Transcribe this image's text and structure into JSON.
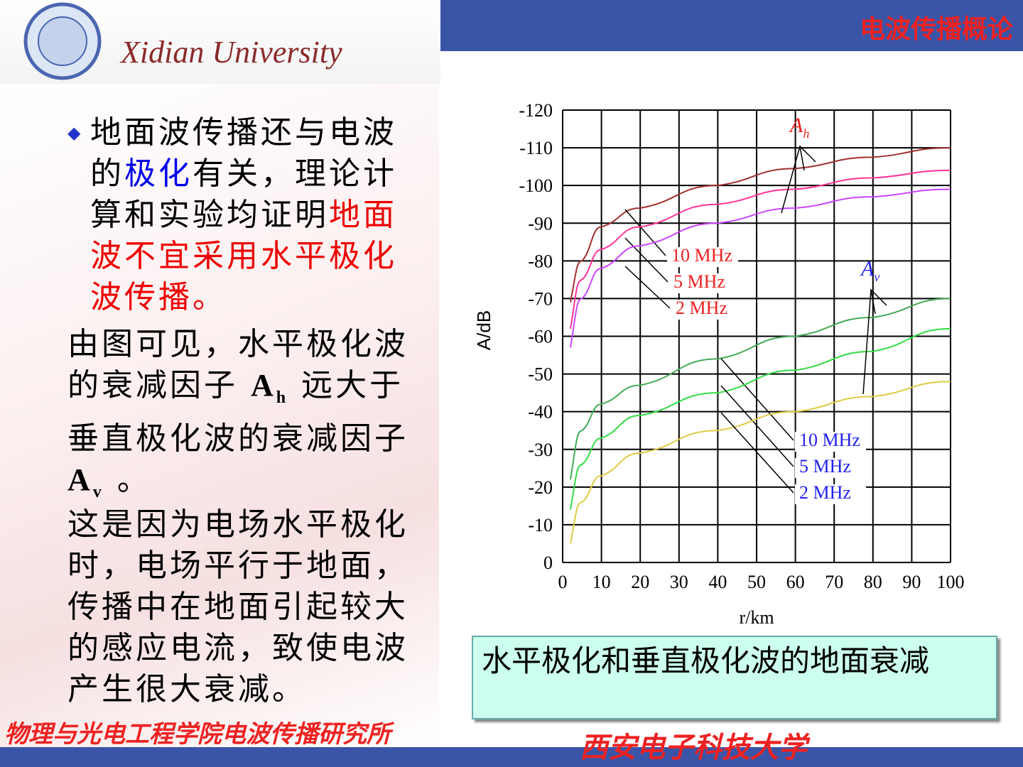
{
  "header": {
    "course": "电波传播概论",
    "university_en": "Xidian University"
  },
  "bullet": [
    {
      "text": "地面波传播还与电波的",
      "color": "#000000"
    },
    {
      "text": "极化",
      "color": "#0000ee"
    },
    {
      "text": "有关，理论计算和实验均证明",
      "color": "#000000"
    },
    {
      "text": "地面波不宜采用水平极化波传播。",
      "color": "#ee0000"
    }
  ],
  "paragraph2": {
    "before": "由图可见，水平极化波的衰减因子 ",
    "a1": "A",
    "sub1": "h",
    "middle": " 远大于垂直极化波的衰减因子",
    "a2": "A",
    "sub2": "v",
    "after": " 。"
  },
  "paragraph3": "这是因为电场水平极化时，电场平行于地面，传播中在地面引起较大的感应电流，致使电波产生很大衰减。",
  "caption": "水平极化和垂直极化波的地面衰减",
  "footer": {
    "institute": "物理与光电工程学院电波传播研究所",
    "university": "西安电子科技大学"
  },
  "chart_data": {
    "type": "line",
    "xlabel": "r/km",
    "ylabel": "A/dB",
    "x": [
      2,
      5,
      10,
      20,
      40,
      60,
      80,
      100
    ],
    "xlim": [
      0,
      100
    ],
    "xticks": [
      0,
      10,
      20,
      30,
      40,
      50,
      60,
      70,
      80,
      90,
      100
    ],
    "ylim": [
      0,
      -120
    ],
    "yticks": [
      0,
      -10,
      -20,
      -30,
      -40,
      -50,
      -60,
      -70,
      -80,
      -90,
      -100,
      -110,
      -120
    ],
    "grid": true,
    "annotations": [
      {
        "text": "A",
        "sub": "h",
        "color": "#ee2222"
      },
      {
        "text": "A",
        "sub": "v",
        "color": "#2222ee"
      }
    ],
    "series": [
      {
        "name": "10 MHz",
        "color": "#a03030",
        "label_color": "#ee2222",
        "values": [
          -69,
          -80,
          -89,
          -94,
          -100,
          -104.5,
          -107.5,
          -110
        ]
      },
      {
        "name": "5 MHz",
        "color": "#ff3399",
        "label_color": "#ee2222",
        "values": [
          -62,
          -75,
          -83,
          -89,
          -95,
          -99,
          -102,
          -104
        ]
      },
      {
        "name": "2 MHz",
        "color": "#cc44ff",
        "label_color": "#ee2222",
        "values": [
          -57,
          -70,
          -78,
          -84,
          -90,
          -94,
          -97,
          -99
        ]
      },
      {
        "name": "10 MHz",
        "color": "#44aa55",
        "label_color": "#2222ee",
        "values": [
          -22,
          -35,
          -42,
          -47,
          -54,
          -60,
          -65,
          -70
        ]
      },
      {
        "name": "5 MHz",
        "color": "#33dd44",
        "label_color": "#2222ee",
        "values": [
          -14,
          -26,
          -33,
          -39,
          -45,
          -51,
          -56,
          -62
        ]
      },
      {
        "name": "2 MHz",
        "color": "#ddcc44",
        "label_color": "#2222ee",
        "values": [
          -5,
          -16,
          -23,
          -29,
          -35,
          -40,
          -44,
          -48
        ]
      }
    ]
  }
}
